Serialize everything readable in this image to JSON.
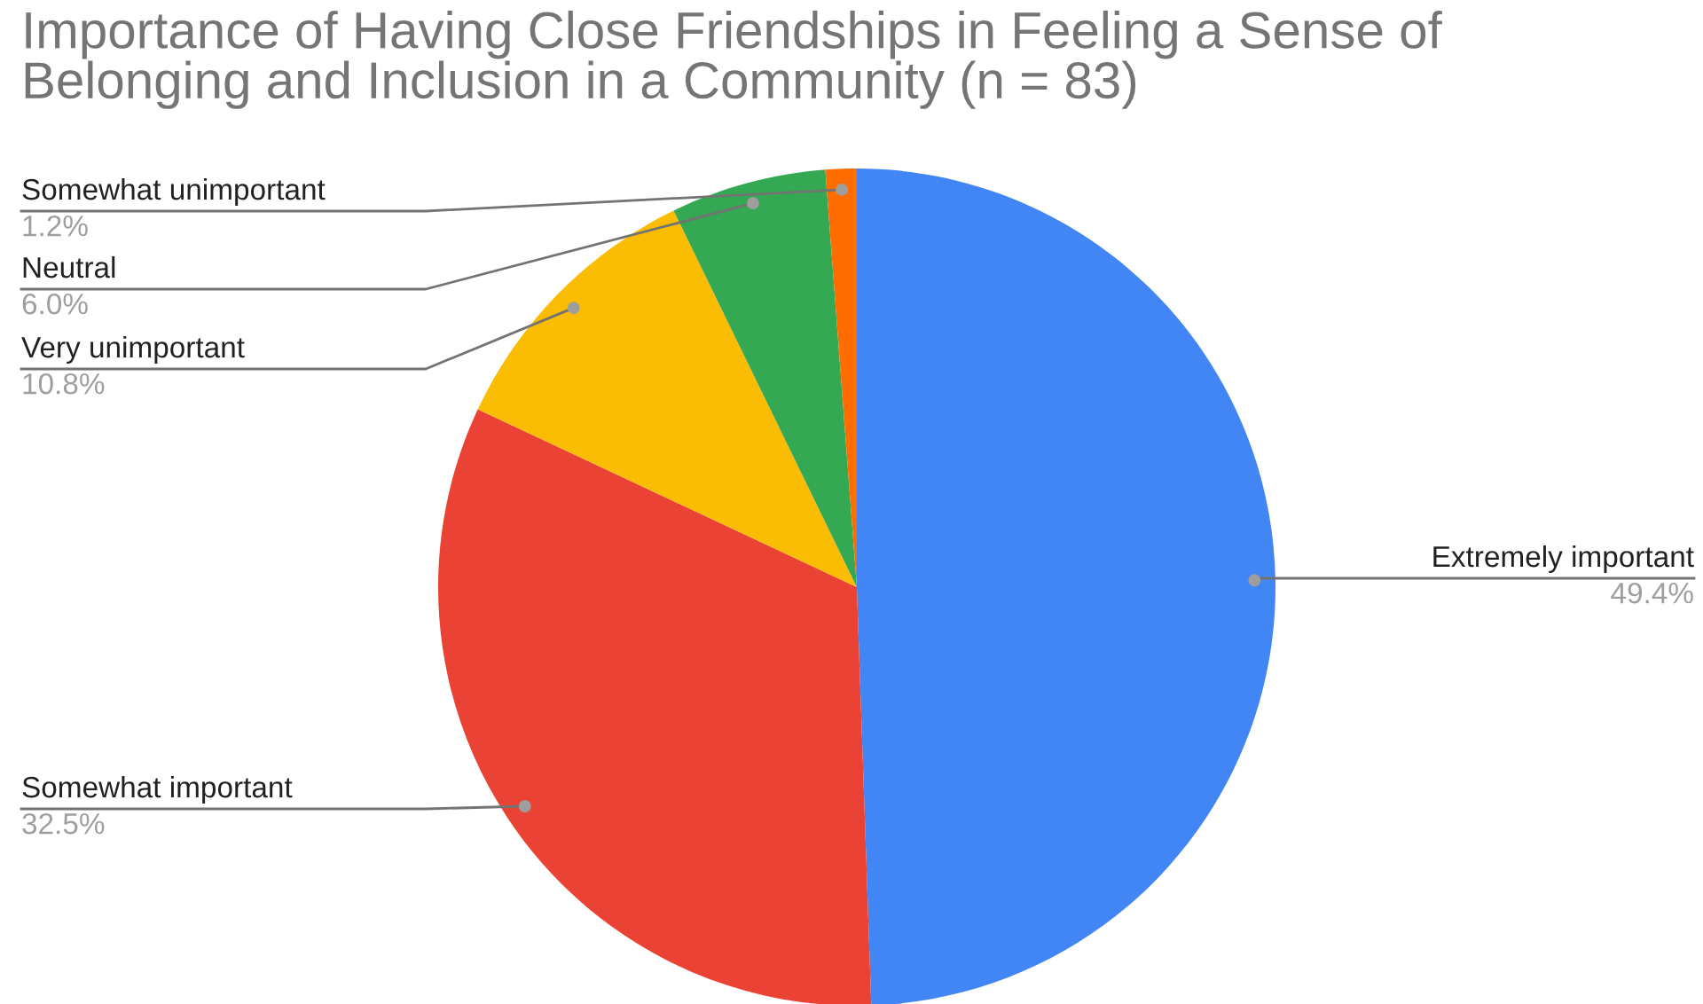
{
  "chart_data": {
    "type": "pie",
    "title": "Importance of Having Close Friendships in Feeling a Sense of\nBelonging and Inclusion in a Community (n = 83)",
    "categories": [
      "Extremely important",
      "Somewhat important",
      "Very unimportant",
      "Neutral",
      "Somewhat unimportant"
    ],
    "values": [
      49.4,
      32.5,
      10.8,
      6.0,
      1.2
    ],
    "colors": [
      "#4285f4",
      "#ea4335",
      "#fbbc04",
      "#34a853",
      "#ff6d01"
    ],
    "value_labels": [
      "49.4%",
      "32.5%",
      "10.8%",
      "6.0%",
      "1.2%"
    ],
    "legend": false
  }
}
